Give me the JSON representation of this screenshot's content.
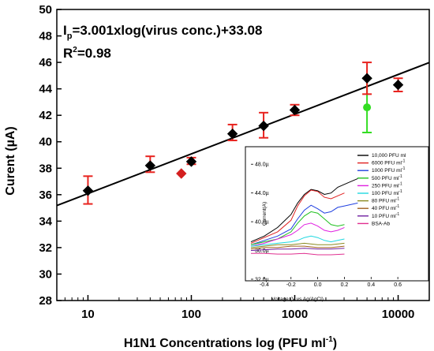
{
  "chart_data": [
    {
      "type": "scatter",
      "xlabel_main": "H1N1 Concentrations log (PFU ml",
      "xlabel_sup": "-1",
      "xlabel_end": ")",
      "ylabel": "Curent (µA)",
      "xscale": "log",
      "xlim": [
        5,
        20000
      ],
      "ylim": [
        28,
        50
      ],
      "x_ticks": [
        10,
        100,
        1000,
        10000
      ],
      "x_tick_labels": [
        "10",
        "100",
        "1000",
        "10000"
      ],
      "y_ticks": [
        28,
        30,
        32,
        34,
        36,
        38,
        40,
        42,
        44,
        46,
        48,
        50
      ],
      "grid": false,
      "equation": {
        "i": "I",
        "sub": "p",
        "rest": "=3.001xlog(virus conc.)+33.08",
        "r_prefix": "R",
        "r_sup": "2",
        "r_rest": "=0.98"
      },
      "fit": {
        "slope": 3.001,
        "intercept": 33.08
      },
      "points": [
        {
          "x": 10,
          "y": 36.3,
          "err_hi": 37.4,
          "err_lo": 35.3
        },
        {
          "x": 40,
          "y": 38.2,
          "err_hi": 38.9,
          "err_lo": 37.7
        },
        {
          "x": 100,
          "y": 38.5,
          "err_hi": 38.8,
          "err_lo": 38.3
        },
        {
          "x": 250,
          "y": 40.6,
          "err_hi": 41.3,
          "err_lo": 40.1
        },
        {
          "x": 500,
          "y": 41.2,
          "err_hi": 42.2,
          "err_lo": 40.3
        },
        {
          "x": 1000,
          "y": 42.4,
          "err_hi": 42.8,
          "err_lo": 42.0
        },
        {
          "x": 5000,
          "y": 44.8,
          "err_hi": 46.0,
          "err_lo": 43.6
        },
        {
          "x": 10000,
          "y": 44.3,
          "err_hi": 44.8,
          "err_lo": 43.8
        }
      ],
      "red_point": {
        "x": 80,
        "y": 37.6
      },
      "green_point": {
        "x": 5000,
        "y": 42.6,
        "err_hi": 44.8,
        "err_lo": 40.7
      },
      "colors": {
        "marker": "#000000",
        "error_bar": "#e8231f",
        "fit_line": "#000000",
        "red_marker": "#d42020",
        "green": "#33dd22"
      }
    },
    {
      "type": "line",
      "xlabel": "Voltage (V vs Ag/AgCl)",
      "ylabel": "Current(A)",
      "xlim": [
        -0.5,
        0.8
      ],
      "ylim": [
        32.0,
        50.0
      ],
      "x_ticks": [
        -0.4,
        -0.2,
        0.0,
        0.2,
        0.4,
        0.6
      ],
      "x_tick_labels": [
        "-0.4",
        "-0.2",
        "0.0",
        "0.2",
        "0.4",
        "0.6"
      ],
      "y_ticks": [
        32,
        36,
        40,
        44,
        48
      ],
      "y_tick_labels": [
        "32.0µ",
        "36.0µ",
        "40.0µ",
        "44.0µ",
        "48.0µ"
      ],
      "legend_position": "top-right",
      "series": [
        {
          "name": "10,000 PFU ml",
          "sup": "",
          "color": "#000000",
          "x": [
            -0.5,
            -0.4,
            -0.3,
            -0.2,
            -0.15,
            -0.1,
            -0.05,
            0.0,
            0.05,
            0.1,
            0.15,
            0.2,
            0.25,
            0.3
          ],
          "y": [
            37.2,
            38.0,
            39.2,
            41.0,
            42.6,
            43.8,
            44.5,
            44.3,
            43.8,
            44.0,
            44.8,
            45.2,
            45.6,
            46.0
          ]
        },
        {
          "name": "6000 PFU ml",
          "sup": "-1",
          "color": "#e02020",
          "x": [
            -0.5,
            -0.4,
            -0.3,
            -0.2,
            -0.15,
            -0.1,
            -0.05,
            0.0,
            0.05,
            0.1,
            0.15,
            0.2
          ],
          "y": [
            37.0,
            37.8,
            38.6,
            40.2,
            42.2,
            43.6,
            44.4,
            44.2,
            43.4,
            43.2,
            43.6,
            44.0
          ]
        },
        {
          "name": "1000 PFU ml",
          "sup": "-1",
          "color": "#2040e0",
          "x": [
            -0.5,
            -0.4,
            -0.3,
            -0.2,
            -0.15,
            -0.1,
            -0.05,
            0.0,
            0.05,
            0.1,
            0.15,
            0.2,
            0.25,
            0.3
          ],
          "y": [
            36.8,
            37.4,
            38.0,
            39.0,
            40.4,
            41.6,
            42.3,
            41.8,
            41.2,
            41.4,
            42.0,
            42.2,
            42.4,
            42.6
          ]
        },
        {
          "name": "500 PFU ml",
          "sup": "-1",
          "color": "#20c020",
          "x": [
            -0.5,
            -0.4,
            -0.3,
            -0.2,
            -0.15,
            -0.1,
            -0.05,
            0.0,
            0.05,
            0.1,
            0.15,
            0.2
          ],
          "y": [
            36.8,
            37.2,
            37.6,
            38.6,
            39.8,
            40.8,
            41.4,
            41.2,
            40.4,
            39.6,
            39.4,
            39.6
          ]
        },
        {
          "name": "250 PFU ml",
          "sup": "-1",
          "color": "#e020e0",
          "x": [
            -0.5,
            -0.4,
            -0.3,
            -0.2,
            -0.15,
            -0.1,
            -0.05,
            0.0,
            0.05,
            0.1,
            0.15,
            0.2
          ],
          "y": [
            36.6,
            37.0,
            37.6,
            38.2,
            38.8,
            39.6,
            39.8,
            39.4,
            38.8,
            38.6,
            38.8,
            39.2
          ]
        },
        {
          "name": "100 PFU ml",
          "sup": "-1",
          "color": "#20d8e0",
          "x": [
            -0.5,
            -0.4,
            -0.3,
            -0.2,
            -0.15,
            -0.1,
            -0.05,
            0.0,
            0.05,
            0.1,
            0.15,
            0.2
          ],
          "y": [
            36.6,
            36.8,
            37.0,
            37.2,
            37.4,
            37.8,
            38.0,
            37.8,
            37.4,
            37.2,
            37.4,
            37.6
          ]
        },
        {
          "name": "80 PFU ml",
          "sup": "-1",
          "color": "#8a8a20",
          "x": [
            -0.5,
            -0.4,
            -0.3,
            -0.2,
            -0.1,
            0.0,
            0.1,
            0.2
          ],
          "y": [
            36.4,
            36.6,
            36.8,
            36.8,
            37.0,
            36.8,
            36.8,
            37.0
          ]
        },
        {
          "name": "40 PFU ml",
          "sup": "-1",
          "color": "#a06020",
          "x": [
            -0.5,
            -0.4,
            -0.3,
            -0.2,
            -0.1,
            0.0,
            0.1,
            0.2
          ],
          "y": [
            36.2,
            36.4,
            36.4,
            36.6,
            36.6,
            36.4,
            36.4,
            36.6
          ]
        },
        {
          "name": "10 PFU ml",
          "sup": "-1",
          "color": "#7020a0",
          "x": [
            -0.5,
            -0.4,
            -0.3,
            -0.2,
            -0.1,
            0.0,
            0.1,
            0.2
          ],
          "y": [
            36.0,
            36.1,
            36.2,
            36.2,
            36.3,
            36.2,
            36.2,
            36.3
          ]
        },
        {
          "name": "BSA-Ab",
          "sup": "",
          "color": "#e03090",
          "x": [
            -0.5,
            -0.4,
            -0.3,
            -0.2,
            -0.1,
            0.0,
            0.1,
            0.2
          ],
          "y": [
            35.6,
            35.6,
            35.5,
            35.5,
            35.6,
            35.4,
            35.4,
            35.5
          ]
        }
      ]
    }
  ]
}
